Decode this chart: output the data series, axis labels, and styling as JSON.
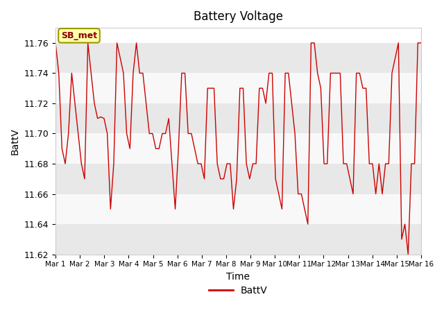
{
  "title": "Battery Voltage",
  "xlabel": "Time",
  "ylabel": "BattV",
  "ylim": [
    11.62,
    11.77
  ],
  "yticks": [
    11.62,
    11.64,
    11.66,
    11.68,
    11.7,
    11.72,
    11.74,
    11.76
  ],
  "legend_label": "BattV",
  "annotation_text": "SB_met",
  "line_color": "#cc0000",
  "band_colors": [
    "#e8e8e8",
    "#f4f4f4",
    "#e8e8e8",
    "#f4f4f4",
    "#e8e8e8",
    "#f4f4f4",
    "#e8e8e8"
  ],
  "x_labels": [
    "Mar 1",
    "Mar 2",
    "Mar 3",
    "Mar 4",
    "Mar 5",
    "Mar 6",
    "Mar 7",
    "Mar 8",
    "Mar 9",
    "Mar 10",
    "Mar 11",
    "Mar 12",
    "Mar 13",
    "Mar 14",
    "Mar 15",
    "Mar 16"
  ],
  "y_values": [
    11.76,
    11.74,
    11.69,
    11.68,
    11.7,
    11.74,
    11.72,
    11.7,
    11.68,
    11.67,
    11.76,
    11.74,
    11.72,
    11.71,
    11.711,
    11.71,
    11.7,
    11.65,
    11.68,
    11.76,
    11.75,
    11.74,
    11.7,
    11.69,
    11.74,
    11.76,
    11.74,
    11.74,
    11.72,
    11.7,
    11.7,
    11.69,
    11.69,
    11.7,
    11.7,
    11.71,
    11.68,
    11.65,
    11.69,
    11.74,
    11.74,
    11.7,
    11.7,
    11.69,
    11.68,
    11.68,
    11.67,
    11.73,
    11.73,
    11.73,
    11.68,
    11.67,
    11.67,
    11.68,
    11.68,
    11.65,
    11.67,
    11.73,
    11.73,
    11.68,
    11.67,
    11.68,
    11.68,
    11.73,
    11.73,
    11.72,
    11.74,
    11.74,
    11.67,
    11.66,
    11.65,
    11.74,
    11.74,
    11.72,
    11.7,
    11.66,
    11.66,
    11.65,
    11.64,
    11.76,
    11.76,
    11.74,
    11.73,
    11.68,
    11.68,
    11.74,
    11.74,
    11.74,
    11.74,
    11.68,
    11.68,
    11.67,
    11.66,
    11.74,
    11.74,
    11.73,
    11.73,
    11.68,
    11.68,
    11.66,
    11.68,
    11.66,
    11.68,
    11.68,
    11.74,
    11.75,
    11.76,
    11.63,
    11.64,
    11.62,
    11.68,
    11.68,
    11.76,
    11.76
  ]
}
